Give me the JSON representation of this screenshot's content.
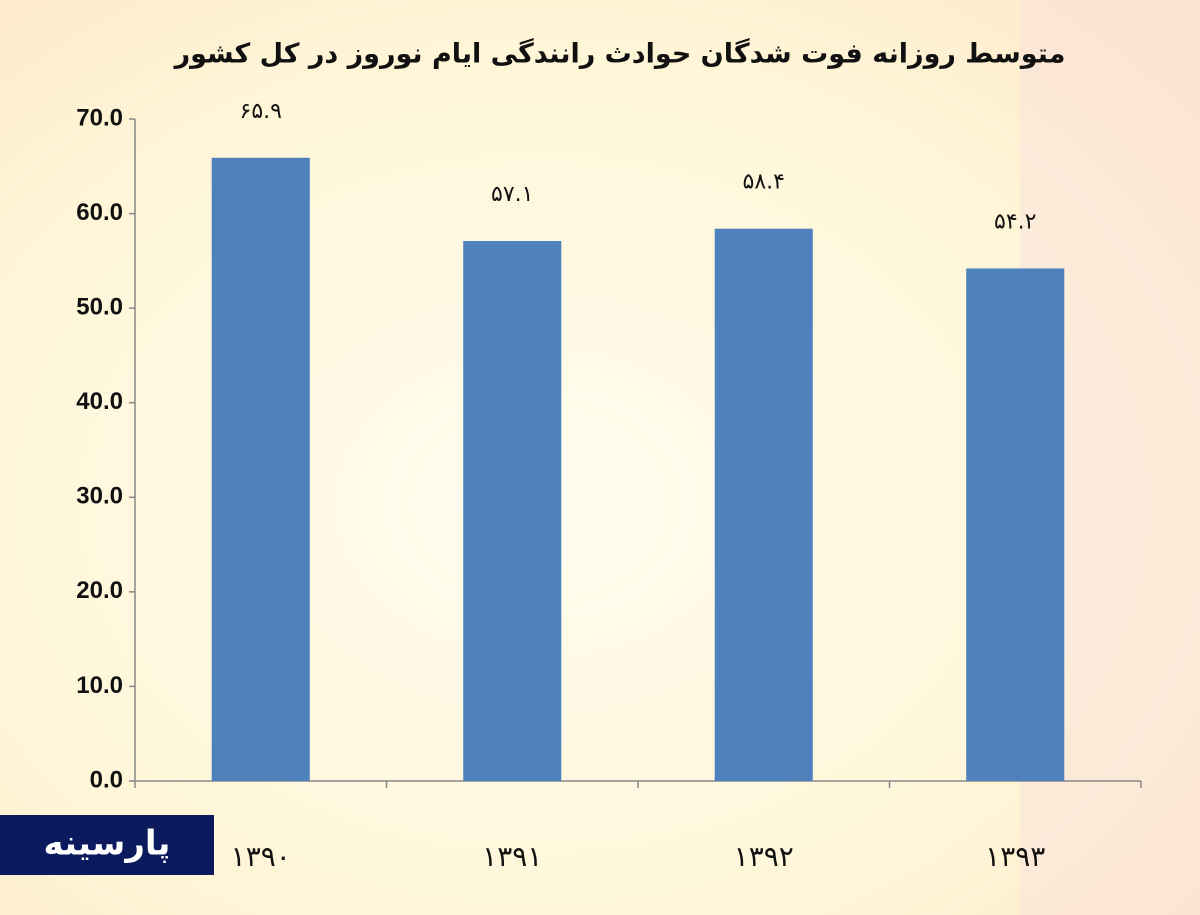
{
  "chart_data": {
    "type": "bar",
    "title": "متوسط روزانه  فوت شدگان حوادث رانندگی ایام نوروز در کل کشور",
    "categories": [
      "۱۳۹۰",
      "۱۳۹۱",
      "۱۳۹۲",
      "۱۳۹۳"
    ],
    "values": [
      65.9,
      57.1,
      58.4,
      54.2
    ],
    "value_labels": [
      "۶۵.۹",
      "۵۷.۱",
      "۵۸.۴",
      "۵۴.۲"
    ],
    "color": "#4f81bd",
    "ylim": [
      0,
      70
    ],
    "yticks": [
      {
        "value": 0,
        "label": "0.0"
      },
      {
        "value": 10,
        "label": "10.0"
      },
      {
        "value": 20,
        "label": "20.0"
      },
      {
        "value": 30,
        "label": "30.0"
      },
      {
        "value": 40,
        "label": "40.0"
      },
      {
        "value": 50,
        "label": "50.0"
      },
      {
        "value": 60,
        "label": "60.0"
      },
      {
        "value": 70,
        "label": "70.0"
      }
    ],
    "grid": false
  },
  "watermark": "پارسینه"
}
